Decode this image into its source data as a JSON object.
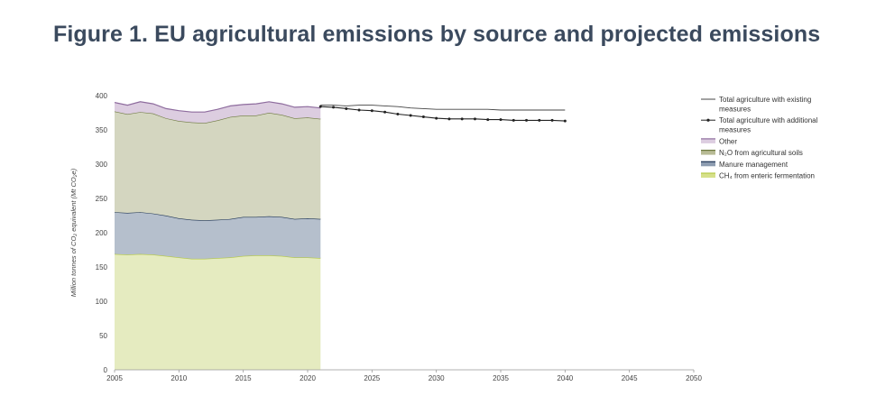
{
  "page": {
    "title": "Figure 1. EU agricultural emissions by source and projected emissions"
  },
  "chart_data": {
    "type": "area",
    "ylabel": "Million tonnes of CO₂ equivalent (Mt CO₂e)",
    "xlabel": "",
    "xlim": [
      2005,
      2050
    ],
    "ylim": [
      0,
      400
    ],
    "x_ticks": [
      2005,
      2010,
      2015,
      2020,
      2025,
      2030,
      2035,
      2040,
      2045,
      2050
    ],
    "y_ticks": [
      0,
      50,
      100,
      150,
      200,
      250,
      300,
      350,
      400
    ],
    "grid": false,
    "legend_position": "right",
    "stacked_series": [
      {
        "name": "CH₄ from enteric fermentation",
        "fill": "#e5ebc0",
        "line": "#b5c945",
        "x": [
          2005,
          2006,
          2007,
          2008,
          2009,
          2010,
          2011,
          2012,
          2013,
          2014,
          2015,
          2016,
          2017,
          2018,
          2019,
          2020,
          2021
        ],
        "cumulative": [
          169,
          168,
          169,
          168,
          166,
          164,
          162,
          162,
          163,
          164,
          166,
          167,
          167,
          166,
          164,
          164,
          163
        ]
      },
      {
        "name": "Manure management",
        "fill": "#b5bfcc",
        "line": "#1f3556",
        "x": [
          2005,
          2006,
          2007,
          2008,
          2009,
          2010,
          2011,
          2012,
          2013,
          2014,
          2015,
          2016,
          2017,
          2018,
          2019,
          2020,
          2021
        ],
        "cumulative": [
          230,
          229,
          230,
          228,
          225,
          221,
          219,
          218,
          219,
          220,
          223,
          223,
          224,
          223,
          220,
          221,
          220
        ]
      },
      {
        "name": "N₂O from agricultural soils",
        "fill": "#d4d6c0",
        "line": "#6e7a40",
        "x": [
          2005,
          2006,
          2007,
          2008,
          2009,
          2010,
          2011,
          2012,
          2013,
          2014,
          2015,
          2016,
          2017,
          2018,
          2019,
          2020,
          2021
        ],
        "cumulative": [
          377,
          373,
          376,
          374,
          367,
          363,
          361,
          360,
          364,
          369,
          371,
          371,
          375,
          372,
          367,
          368,
          366
        ]
      },
      {
        "name": "Other",
        "fill": "#dccde0",
        "line": "#8e6c9e",
        "x": [
          2005,
          2006,
          2007,
          2008,
          2009,
          2010,
          2011,
          2012,
          2013,
          2014,
          2015,
          2016,
          2017,
          2018,
          2019,
          2020,
          2021
        ],
        "cumulative": [
          390,
          386,
          391,
          388,
          381,
          378,
          376,
          376,
          380,
          385,
          387,
          388,
          391,
          388,
          383,
          384,
          382
        ]
      }
    ],
    "line_series": [
      {
        "name": "Total agriculture with existing measures",
        "color": "#444444",
        "markers": false,
        "x": [
          2021,
          2022,
          2023,
          2024,
          2025,
          2026,
          2027,
          2028,
          2029,
          2030,
          2031,
          2032,
          2033,
          2034,
          2035,
          2036,
          2037,
          2038,
          2039,
          2040
        ],
        "values": [
          386,
          386,
          385,
          386,
          386,
          385,
          384,
          382,
          381,
          380,
          380,
          380,
          380,
          380,
          379,
          379,
          379,
          379,
          379,
          379
        ]
      },
      {
        "name": "Total agriculture with additional measures",
        "color": "#222222",
        "markers": true,
        "x": [
          2021,
          2022,
          2023,
          2024,
          2025,
          2026,
          2027,
          2028,
          2029,
          2030,
          2031,
          2032,
          2033,
          2034,
          2035,
          2036,
          2037,
          2038,
          2039,
          2040
        ],
        "values": [
          384,
          383,
          381,
          379,
          378,
          376,
          373,
          371,
          369,
          367,
          366,
          366,
          366,
          365,
          365,
          364,
          364,
          364,
          364,
          363
        ]
      }
    ],
    "legend": [
      {
        "label_lines": [
          "Total agriculture with existing",
          "measures"
        ],
        "kind": "line",
        "color": "#444444"
      },
      {
        "label_lines": [
          "Total agriculture with additional",
          "measures"
        ],
        "kind": "line-marker",
        "color": "#222222"
      },
      {
        "label_lines": [
          "Other"
        ],
        "kind": "area",
        "fill": "#dccde0",
        "line": "#8e6c9e"
      },
      {
        "label_lines": [
          "N₂O from agricultural soils"
        ],
        "kind": "area",
        "fill": "#b8bb95",
        "line": "#6e7a40"
      },
      {
        "label_lines": [
          "Manure management"
        ],
        "kind": "area",
        "fill": "#8d9cb0",
        "line": "#1f3556"
      },
      {
        "label_lines": [
          "CH₄ from enteric fermentation"
        ],
        "kind": "area",
        "fill": "#d6e08a",
        "line": "#b5c945"
      }
    ]
  }
}
